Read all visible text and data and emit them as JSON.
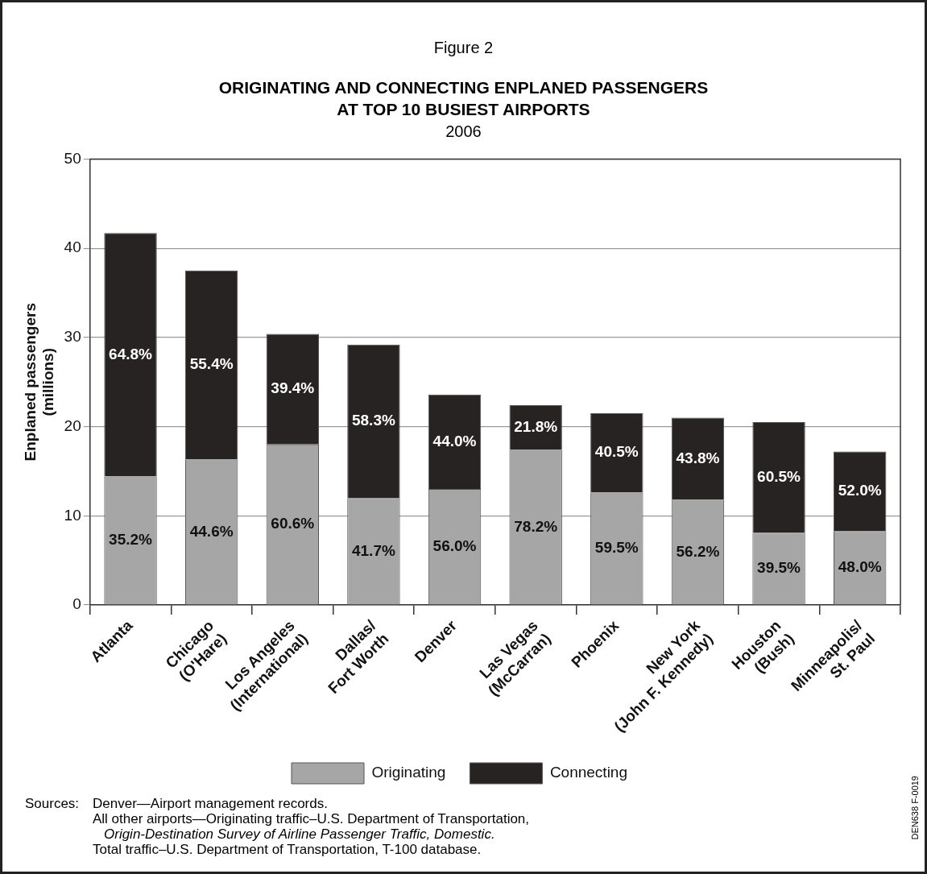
{
  "chart_data": {
    "type": "bar",
    "stacked": true,
    "title": "ORIGINATING AND CONNECTING ENPLANED PASSENGERS\nAT TOP 10 BUSIEST AIRPORTS",
    "subtitle": "2006",
    "ylabel": "Enplaned passengers\n(millions)",
    "categories": [
      "Atlanta",
      "Chicago\n(O'Hare)",
      "Los Angeles\n(International)",
      "Dallas/\nFort Worth",
      "Denver",
      "Las Vegas\n(McCarran)",
      "Phoenix",
      "New York\n(John F. Kennedy)",
      "Houston\n(Bush)",
      "Minneapolis/\nSt. Paul"
    ],
    "series": [
      {
        "name": "Originating",
        "color": "#a7a6a6",
        "values": [
          14.4,
          16.3,
          18.0,
          12.0,
          13.0,
          17.4,
          12.6,
          11.8,
          8.1,
          8.3
        ]
      },
      {
        "name": "Connecting",
        "color": "#262322",
        "values": [
          27.3,
          21.2,
          12.4,
          17.2,
          10.6,
          5.0,
          8.9,
          9.2,
          12.4,
          8.9
        ]
      }
    ],
    "ylim": [
      0,
      50
    ],
    "yticks": [
      0,
      10,
      20,
      30,
      40,
      50
    ],
    "grid": "y",
    "legend": "bottom",
    "annotations": [
      "Figure 2",
      "Sources:",
      "Denver—Airport management records.",
      "All other airports—Originating traffic–U.S. Department of Transportation,",
      "Origin-Destination Survey of Airline Passenger Traffic, Domestic.",
      "Total traffic–U.S. Department of Transportation, T-100 database.",
      "DEN638 F-0019",
      "35.2%",
      "44.6%",
      "60.6%",
      "41.7%",
      "56.0%",
      "78.2%",
      "59.5%",
      "56.2%",
      "39.5%",
      "48.0%",
      "64.8%",
      "55.4%",
      "39.4%",
      "58.3%",
      "44.0%",
      "21.8%",
      "40.5%",
      "43.8%",
      "60.5%",
      "52.0%"
    ]
  }
}
